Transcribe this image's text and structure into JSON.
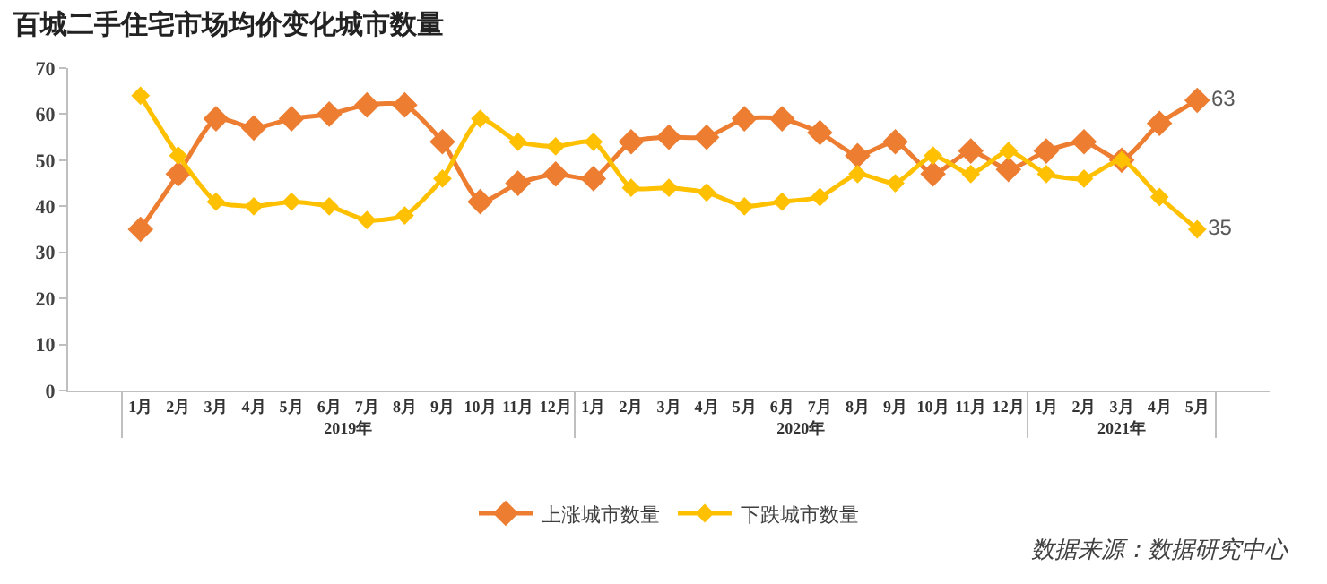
{
  "chart_data": {
    "type": "line",
    "title": "百城二手住宅市场均价变化城市数量",
    "categories": [
      "1月",
      "2月",
      "3月",
      "4月",
      "5月",
      "6月",
      "7月",
      "8月",
      "9月",
      "10月",
      "11月",
      "12月",
      "1月",
      "2月",
      "3月",
      "4月",
      "5月",
      "6月",
      "7月",
      "8月",
      "9月",
      "10月",
      "11月",
      "12月",
      "1月",
      "2月",
      "3月",
      "4月",
      "5月"
    ],
    "series": [
      {
        "name": "上涨城市数量",
        "color": "#ed7d31",
        "values": [
          35,
          47,
          59,
          57,
          59,
          60,
          62,
          62,
          54,
          41,
          45,
          47,
          46,
          54,
          55,
          55,
          59,
          59,
          56,
          51,
          54,
          47,
          52,
          48,
          52,
          54,
          50,
          58,
          63
        ],
        "value_labels": [
          null,
          null,
          null,
          null,
          null,
          null,
          null,
          null,
          null,
          null,
          null,
          null,
          null,
          null,
          null,
          null,
          null,
          null,
          null,
          null,
          null,
          null,
          null,
          null,
          null,
          null,
          null,
          null,
          "63"
        ]
      },
      {
        "name": "下跌城市数量",
        "color": "#ffc000",
        "values": [
          64,
          51,
          41,
          40,
          41,
          40,
          37,
          38,
          46,
          59,
          54,
          53,
          54,
          44,
          44,
          43,
          40,
          41,
          42,
          47,
          45,
          51,
          47,
          52,
          47,
          46,
          50,
          42,
          35
        ],
        "value_labels": [
          null,
          null,
          null,
          null,
          null,
          null,
          null,
          null,
          null,
          null,
          null,
          null,
          null,
          null,
          null,
          null,
          null,
          null,
          null,
          null,
          null,
          null,
          null,
          null,
          null,
          null,
          null,
          null,
          "35"
        ]
      }
    ],
    "ylim": [
      0,
      70
    ],
    "yticks": [
      0,
      10,
      20,
      30,
      40,
      50,
      60,
      70
    ],
    "grid": false,
    "legend": "bottom",
    "marker": "diamond",
    "line_style": "solid",
    "annotations": [
      {
        "text": "2019年"
      },
      {
        "text": "2020年"
      },
      {
        "text": "2021年"
      },
      "数据来源：数据研究中心"
    ]
  }
}
